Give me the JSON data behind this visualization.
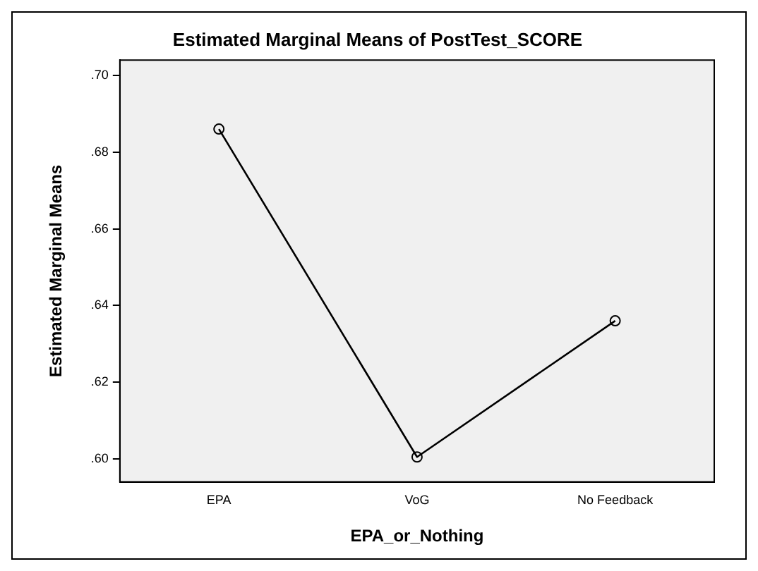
{
  "chart_data": {
    "type": "line",
    "title": "Estimated Marginal Means of PostTest_SCORE",
    "xlabel": "EPA_or_Nothing",
    "ylabel": "Estimated Marginal Means",
    "categories": [
      "EPA",
      "VoG",
      "No Feedback"
    ],
    "series": [
      {
        "color": "#000000",
        "values": [
          0.686,
          0.6005,
          0.636
        ]
      }
    ],
    "ylim": [
      0.594,
      0.704
    ],
    "yticks": [
      {
        "value": 0.6,
        "label": ".60"
      },
      {
        "value": 0.62,
        "label": ".62"
      },
      {
        "value": 0.64,
        "label": ".64"
      },
      {
        "value": 0.66,
        "label": ".66"
      },
      {
        "value": 0.68,
        "label": ".68"
      },
      {
        "value": 0.7,
        "label": ".70"
      }
    ],
    "grid": false,
    "legend": false,
    "marker": "circle",
    "line_style": "solid"
  }
}
